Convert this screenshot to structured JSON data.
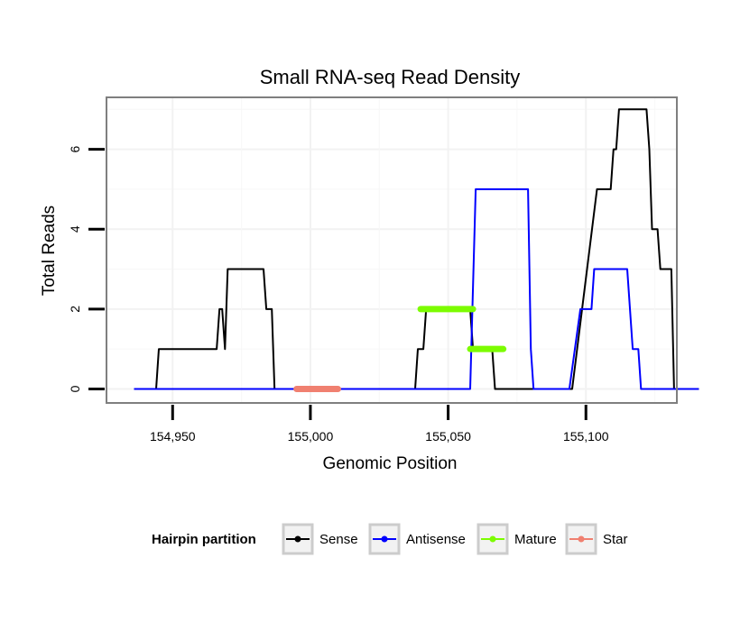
{
  "chart_data": {
    "type": "line",
    "title": "Small RNA-seq Read Density",
    "xlabel": "Genomic Position",
    "ylabel": "Total Reads",
    "xlim": [
      154926,
      155133
    ],
    "ylim": [
      -0.35,
      7.3
    ],
    "xticks": [
      154950,
      155000,
      155050,
      155100
    ],
    "xtick_labels": [
      "154,950",
      "155,000",
      "155,050",
      "155,100"
    ],
    "yticks": [
      0,
      2,
      4,
      6
    ],
    "ytick_labels": [
      "0",
      "2",
      "4",
      "6"
    ],
    "grid": true,
    "legend": {
      "title": "Hairpin partition",
      "placement": "bottom",
      "entries": [
        "Sense",
        "Antisense",
        "Mature",
        "Star"
      ]
    },
    "series": [
      {
        "name": "Sense",
        "color": "#000000",
        "points": [
          [
            154936,
            0
          ],
          [
            154944,
            0
          ],
          [
            154945,
            1
          ],
          [
            154966,
            1
          ],
          [
            154967,
            2
          ],
          [
            154968,
            2
          ],
          [
            154969,
            1
          ],
          [
            154970,
            3
          ],
          [
            154983,
            3
          ],
          [
            154984,
            2
          ],
          [
            154986,
            2
          ],
          [
            154987,
            0
          ],
          [
            155038,
            0
          ],
          [
            155039,
            1
          ],
          [
            155041,
            1
          ],
          [
            155042,
            2
          ],
          [
            155058,
            2
          ],
          [
            155059,
            1
          ],
          [
            155066,
            1
          ],
          [
            155067,
            0
          ],
          [
            155095,
            0
          ],
          [
            155104,
            5
          ],
          [
            155109,
            5
          ],
          [
            155110,
            6
          ],
          [
            155111,
            6
          ],
          [
            155112,
            7
          ],
          [
            155122,
            7
          ],
          [
            155123,
            6
          ],
          [
            155124,
            4
          ],
          [
            155126,
            4
          ],
          [
            155127,
            3
          ],
          [
            155131,
            3
          ],
          [
            155132,
            0
          ],
          [
            155141,
            0
          ]
        ]
      },
      {
        "name": "Antisense",
        "color": "#0000ff",
        "points": [
          [
            154936,
            0
          ],
          [
            155058,
            0
          ],
          [
            155060,
            5
          ],
          [
            155079,
            5
          ],
          [
            155080,
            1
          ],
          [
            155081,
            0
          ],
          [
            155094,
            0
          ],
          [
            155098,
            2
          ],
          [
            155102,
            2
          ],
          [
            155103,
            3
          ],
          [
            155115,
            3
          ],
          [
            155117,
            1
          ],
          [
            155119,
            1
          ],
          [
            155120,
            0
          ],
          [
            155141,
            0
          ]
        ]
      },
      {
        "name": "Mature",
        "color": "#7cfc00",
        "segments": [
          [
            155040,
            155059,
            2
          ],
          [
            155058,
            155070,
            1
          ]
        ]
      },
      {
        "name": "Star",
        "color": "#f08070",
        "segments": [
          [
            154995,
            155010,
            0
          ]
        ]
      }
    ]
  }
}
